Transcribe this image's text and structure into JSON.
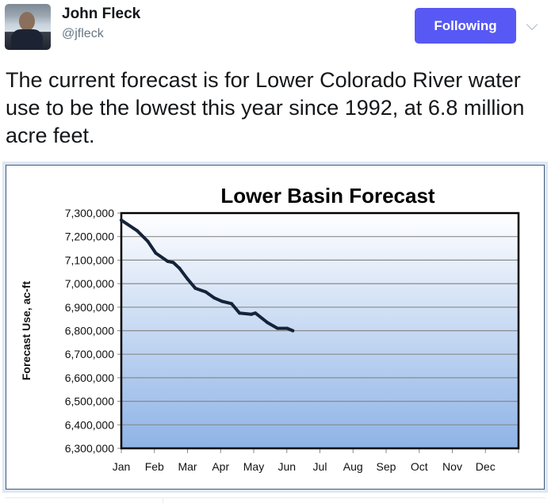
{
  "tweet": {
    "author_name": "John Fleck",
    "author_handle": "@jfleck",
    "follow_label": "Following",
    "text": "The current forecast is for Lower Colorado River water use to be the lowest this year since 1992, at 6.8 million acre feet."
  },
  "colors": {
    "follow": "#5858f5",
    "line": "#14233a",
    "plot_top": "#ffffff",
    "plot_bottom": "#8eb3e6"
  },
  "chart_data": {
    "type": "line",
    "title": "Lower Basin Forecast",
    "xlabel": "",
    "ylabel": "Forecast Use, ac-ft",
    "x_ticks": [
      "Jan",
      "Feb",
      "Mar",
      "Apr",
      "May",
      "Jun",
      "Jul",
      "Aug",
      "Sep",
      "Oct",
      "Nov",
      "Dec"
    ],
    "xlim": [
      0,
      12
    ],
    "ylim": [
      6300000,
      7300000
    ],
    "y_ticks": [
      "7,300,000",
      "7,200,000",
      "7,100,000",
      "7,000,000",
      "6,900,000",
      "6,800,000",
      "6,700,000",
      "6,600,000",
      "6,500,000",
      "6,400,000",
      "6,300,000"
    ],
    "grid": true,
    "series": [
      {
        "name": "Forecast Use",
        "x": [
          0,
          0.48,
          0.8,
          1.04,
          1.4,
          1.57,
          1.76,
          2.0,
          2.24,
          2.55,
          2.8,
          3.04,
          3.33,
          3.57,
          3.93,
          4.05,
          4.41,
          4.72,
          5.01,
          5.18
        ],
        "y": [
          7270000,
          7225000,
          7180000,
          7130000,
          7095000,
          7090000,
          7065000,
          7020000,
          6980000,
          6965000,
          6940000,
          6925000,
          6915000,
          6875000,
          6870000,
          6875000,
          6835000,
          6810000,
          6810000,
          6800000
        ]
      }
    ]
  }
}
